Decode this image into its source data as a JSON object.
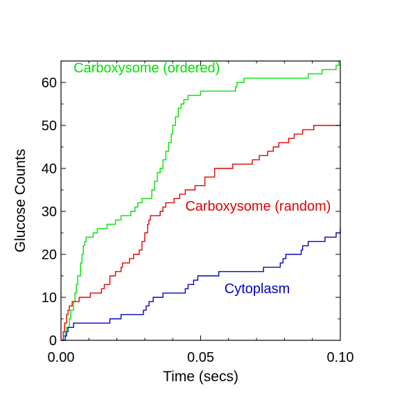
{
  "chart_data": {
    "type": "line",
    "step": true,
    "xlabel": "Time (secs)",
    "ylabel": "Glucose Counts",
    "xlim": [
      0,
      0.1
    ],
    "ylim": [
      0,
      65
    ],
    "x_ticks": [
      0.0,
      0.05,
      0.1
    ],
    "x_tick_labels": [
      "0.00",
      "0.05",
      "0.10"
    ],
    "y_ticks": [
      0,
      10,
      20,
      30,
      40,
      50,
      60
    ],
    "y_tick_labels": [
      "0",
      "10",
      "20",
      "30",
      "40",
      "50",
      "60"
    ],
    "grid": false,
    "legend": "inline labels",
    "series": [
      {
        "name": "Carboxysome (ordered)",
        "color": "#00e000",
        "label_anchor": [
          0.0045,
          62.3
        ],
        "points": [
          [
            0.0,
            0
          ],
          [
            0.0008,
            1
          ],
          [
            0.0015,
            2
          ],
          [
            0.002,
            3
          ],
          [
            0.003,
            5
          ],
          [
            0.0035,
            7
          ],
          [
            0.0045,
            9
          ],
          [
            0.005,
            11
          ],
          [
            0.0055,
            13
          ],
          [
            0.006,
            15
          ],
          [
            0.007,
            18
          ],
          [
            0.0075,
            20
          ],
          [
            0.008,
            22
          ],
          [
            0.0085,
            23
          ],
          [
            0.009,
            24
          ],
          [
            0.0115,
            25
          ],
          [
            0.013,
            26
          ],
          [
            0.0165,
            27
          ],
          [
            0.0195,
            28
          ],
          [
            0.0215,
            29
          ],
          [
            0.025,
            30
          ],
          [
            0.0265,
            31
          ],
          [
            0.0275,
            32
          ],
          [
            0.029,
            33
          ],
          [
            0.0325,
            35
          ],
          [
            0.0335,
            37
          ],
          [
            0.0345,
            39
          ],
          [
            0.0355,
            40
          ],
          [
            0.0365,
            42
          ],
          [
            0.0375,
            44
          ],
          [
            0.0385,
            46
          ],
          [
            0.0395,
            48
          ],
          [
            0.04,
            50
          ],
          [
            0.041,
            52
          ],
          [
            0.042,
            54
          ],
          [
            0.043,
            55
          ],
          [
            0.044,
            56
          ],
          [
            0.0455,
            57
          ],
          [
            0.05,
            58
          ],
          [
            0.0625,
            59
          ],
          [
            0.063,
            60
          ],
          [
            0.0655,
            61
          ],
          [
            0.0885,
            62
          ],
          [
            0.0935,
            63
          ],
          [
            0.0985,
            64
          ],
          [
            0.0995,
            65
          ],
          [
            0.1,
            65
          ]
        ]
      },
      {
        "name": "Carboxysome (random)",
        "color": "#e00000",
        "label_anchor": [
          0.0445,
          30.2
        ],
        "points": [
          [
            0.0,
            0
          ],
          [
            0.0008,
            2
          ],
          [
            0.0013,
            4
          ],
          [
            0.002,
            6
          ],
          [
            0.0025,
            7
          ],
          [
            0.003,
            8
          ],
          [
            0.004,
            9
          ],
          [
            0.0065,
            10
          ],
          [
            0.0105,
            11
          ],
          [
            0.0145,
            12
          ],
          [
            0.0155,
            13
          ],
          [
            0.0175,
            15
          ],
          [
            0.0195,
            16
          ],
          [
            0.0215,
            17
          ],
          [
            0.022,
            18
          ],
          [
            0.0245,
            19
          ],
          [
            0.026,
            20
          ],
          [
            0.028,
            21
          ],
          [
            0.029,
            23
          ],
          [
            0.03,
            25
          ],
          [
            0.031,
            27
          ],
          [
            0.0315,
            28
          ],
          [
            0.032,
            29
          ],
          [
            0.0355,
            30
          ],
          [
            0.0365,
            31
          ],
          [
            0.0375,
            32
          ],
          [
            0.0405,
            33
          ],
          [
            0.0425,
            34
          ],
          [
            0.0445,
            35
          ],
          [
            0.048,
            36
          ],
          [
            0.0515,
            38
          ],
          [
            0.055,
            40
          ],
          [
            0.0615,
            41
          ],
          [
            0.0685,
            42
          ],
          [
            0.071,
            43
          ],
          [
            0.074,
            44
          ],
          [
            0.076,
            45
          ],
          [
            0.078,
            46
          ],
          [
            0.0815,
            47
          ],
          [
            0.0835,
            48
          ],
          [
            0.0865,
            49
          ],
          [
            0.0905,
            50
          ],
          [
            0.1,
            51
          ]
        ]
      },
      {
        "name": "Cytoplasm",
        "color": "#0000c0",
        "label_anchor": [
          0.0585,
          11.0
        ],
        "points": [
          [
            0.0,
            0
          ],
          [
            0.0015,
            1
          ],
          [
            0.002,
            2
          ],
          [
            0.0025,
            3
          ],
          [
            0.0045,
            4
          ],
          [
            0.0175,
            5
          ],
          [
            0.0215,
            6
          ],
          [
            0.0295,
            7
          ],
          [
            0.0305,
            8
          ],
          [
            0.0315,
            9
          ],
          [
            0.033,
            10
          ],
          [
            0.0365,
            11
          ],
          [
            0.0445,
            12
          ],
          [
            0.0455,
            13
          ],
          [
            0.0475,
            14
          ],
          [
            0.049,
            15
          ],
          [
            0.0565,
            16
          ],
          [
            0.0725,
            17
          ],
          [
            0.0785,
            18
          ],
          [
            0.0795,
            19
          ],
          [
            0.0805,
            20
          ],
          [
            0.086,
            21
          ],
          [
            0.0865,
            22
          ],
          [
            0.0885,
            23
          ],
          [
            0.0945,
            24
          ],
          [
            0.0985,
            25
          ],
          [
            0.1,
            26
          ]
        ]
      }
    ]
  }
}
